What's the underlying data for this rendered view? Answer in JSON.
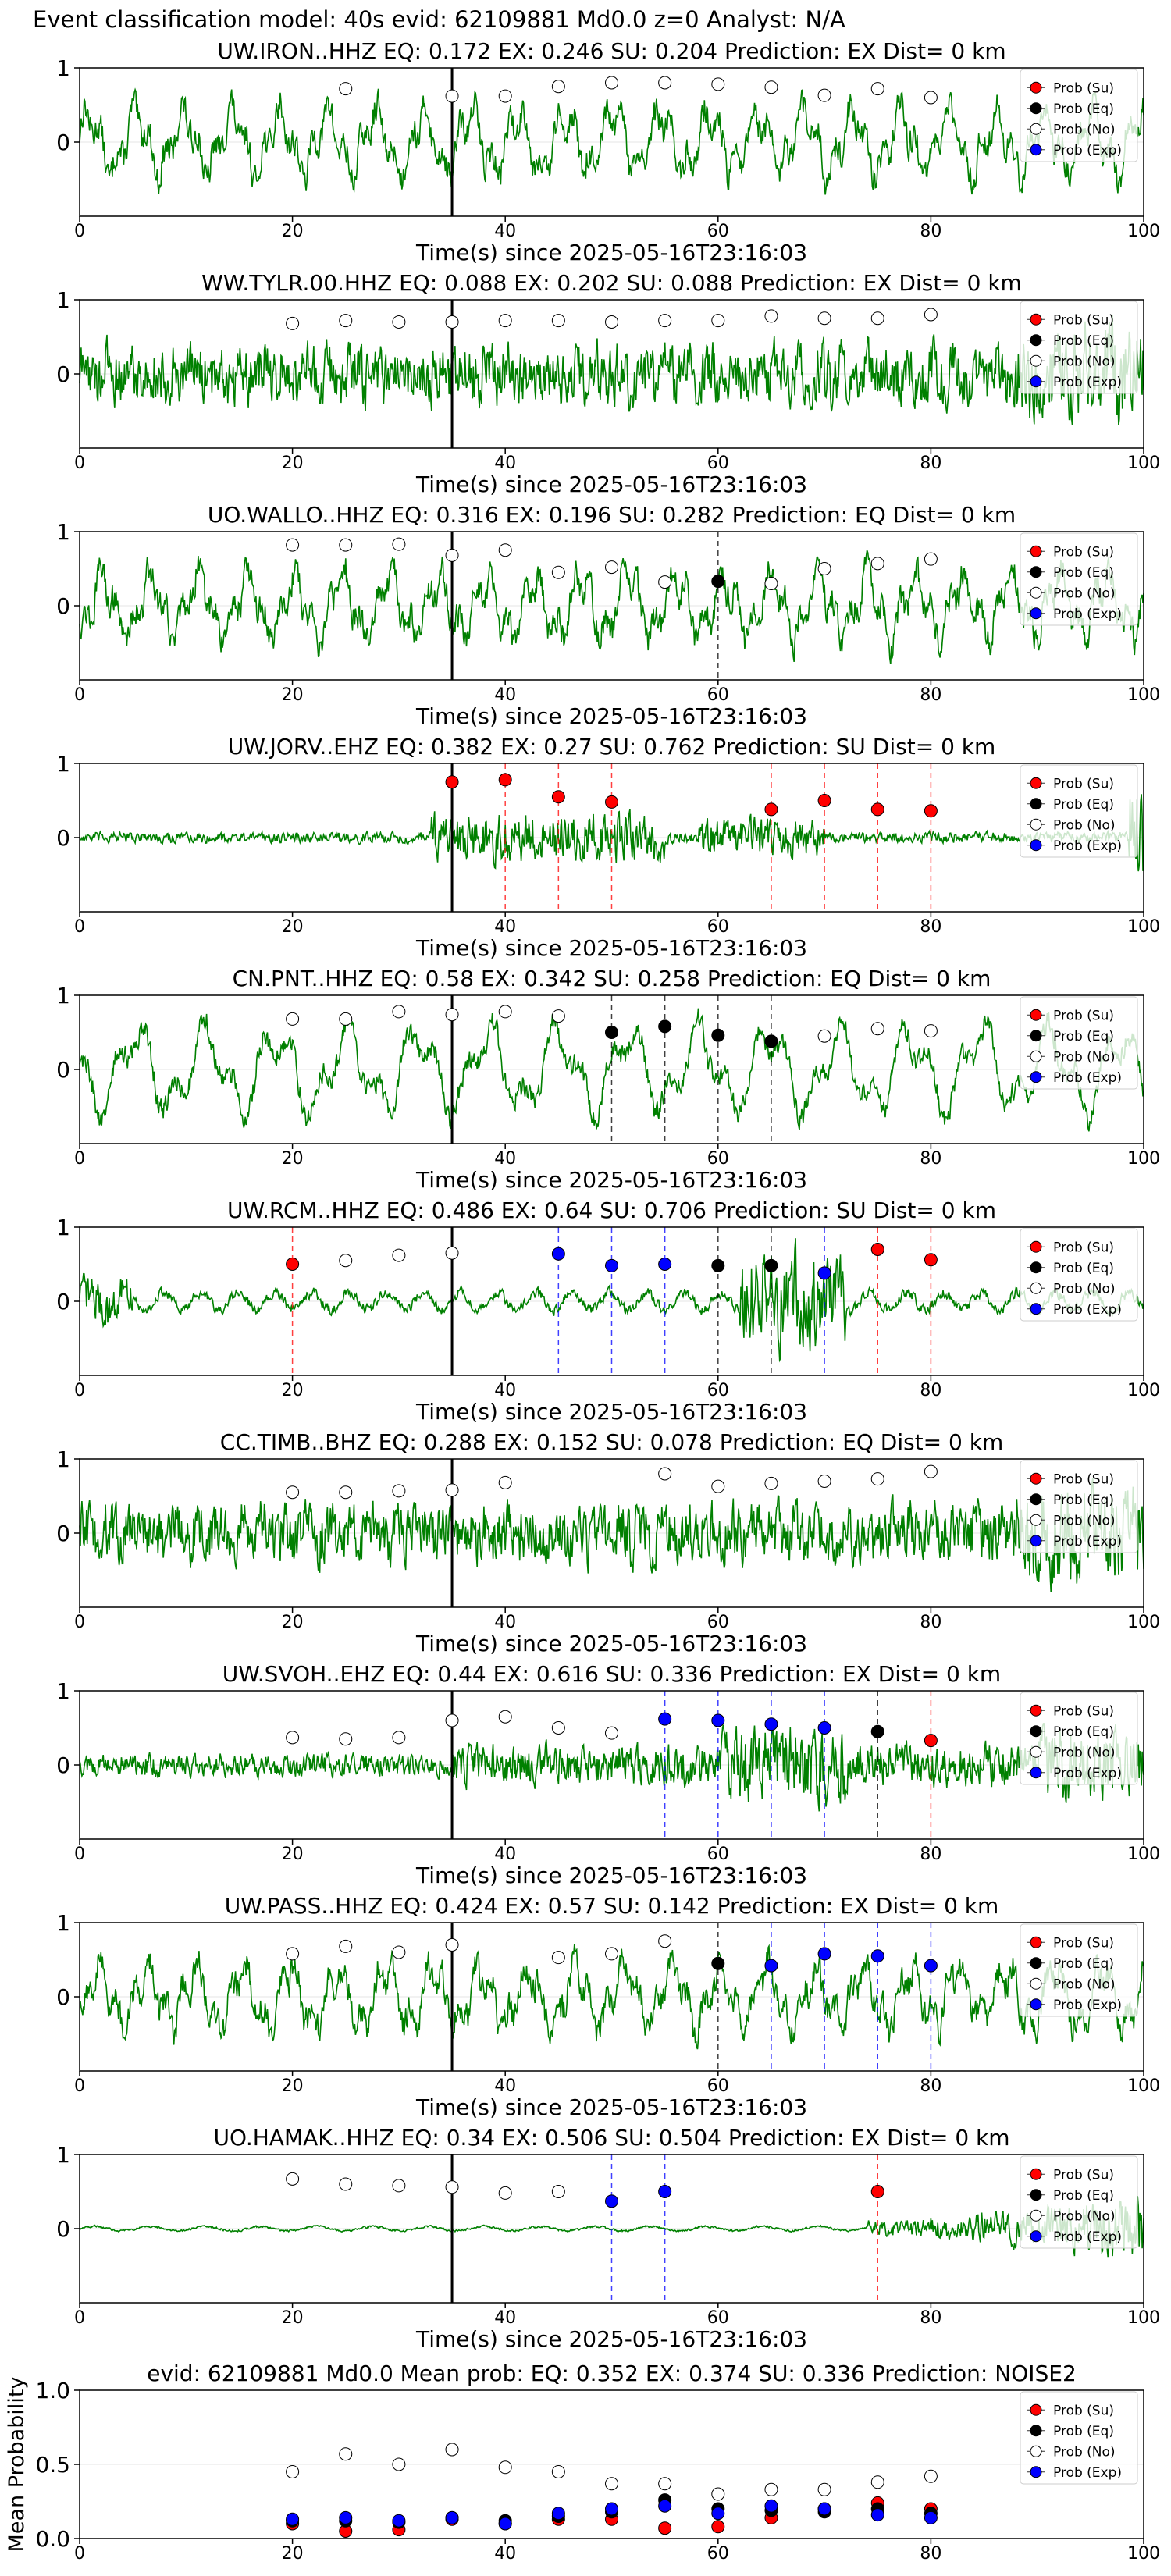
{
  "figure": {
    "title": "Event classification model: 40s evid: 62109881 Md0.0 z=0 Analyst: N/A",
    "xlabel": "Time(s) since 2025-05-16T23:16:03",
    "legend": [
      "Prob (Su)",
      "Prob (Eq)",
      "Prob (No)",
      "Prob (Exp)"
    ],
    "colors": {
      "su": "#ff0000",
      "eq": "#000000",
      "no": "#ffffff",
      "exp": "#0000ff",
      "trace": "#008000",
      "pick": "#000000"
    },
    "pick_time": 35
  },
  "chart_data": [
    {
      "type": "line",
      "station": "UW.IRON..HHZ",
      "title": "UW.IRON..HHZ   EQ: 0.172  EX: 0.246  SU: 0.204   Prediction: EX    Dist= 0 km",
      "xlim": [
        0,
        100
      ],
      "ylim": [
        -1,
        1
      ],
      "xticks": [
        0,
        20,
        40,
        60,
        80,
        100
      ],
      "yticks": [
        1,
        0
      ],
      "trace_style": "noisy",
      "windows": [
        {
          "x": 25,
          "cls": "no",
          "y": 0.72
        },
        {
          "x": 35,
          "cls": "no",
          "y": 0.62
        },
        {
          "x": 40,
          "cls": "no",
          "y": 0.62
        },
        {
          "x": 45,
          "cls": "no",
          "y": 0.75
        },
        {
          "x": 50,
          "cls": "no",
          "y": 0.8
        },
        {
          "x": 55,
          "cls": "no",
          "y": 0.8
        },
        {
          "x": 60,
          "cls": "no",
          "y": 0.78
        },
        {
          "x": 65,
          "cls": "no",
          "y": 0.74
        },
        {
          "x": 70,
          "cls": "no",
          "y": 0.63
        },
        {
          "x": 75,
          "cls": "no",
          "y": 0.72
        },
        {
          "x": 80,
          "cls": "no",
          "y": 0.6
        }
      ]
    },
    {
      "type": "line",
      "station": "WW.TYLR.00.HHZ",
      "title": "WW.TYLR.00.HHZ   EQ: 0.088  EX: 0.202  SU: 0.088   Prediction: EX    Dist= 0 km",
      "xlim": [
        0,
        100
      ],
      "ylim": [
        -1,
        1
      ],
      "xticks": [
        0,
        20,
        40,
        60,
        80,
        100
      ],
      "yticks": [
        1,
        0
      ],
      "trace_style": "dense",
      "windows": [
        {
          "x": 20,
          "cls": "no",
          "y": 0.68
        },
        {
          "x": 25,
          "cls": "no",
          "y": 0.72
        },
        {
          "x": 30,
          "cls": "no",
          "y": 0.7
        },
        {
          "x": 35,
          "cls": "no",
          "y": 0.7
        },
        {
          "x": 40,
          "cls": "no",
          "y": 0.72
        },
        {
          "x": 45,
          "cls": "no",
          "y": 0.72
        },
        {
          "x": 50,
          "cls": "no",
          "y": 0.7
        },
        {
          "x": 55,
          "cls": "no",
          "y": 0.72
        },
        {
          "x": 60,
          "cls": "no",
          "y": 0.72
        },
        {
          "x": 65,
          "cls": "no",
          "y": 0.78
        },
        {
          "x": 70,
          "cls": "no",
          "y": 0.75
        },
        {
          "x": 75,
          "cls": "no",
          "y": 0.75
        },
        {
          "x": 80,
          "cls": "no",
          "y": 0.8
        }
      ]
    },
    {
      "type": "line",
      "station": "UO.WALLO..HHZ",
      "title": "UO.WALLO..HHZ   EQ: 0.316  EX: 0.196  SU: 0.282   Prediction: EQ    Dist= 0 km",
      "xlim": [
        0,
        100
      ],
      "ylim": [
        -1,
        1
      ],
      "xticks": [
        0,
        20,
        40,
        60,
        80,
        100
      ],
      "yticks": [
        1,
        0
      ],
      "trace_style": "noisy",
      "windows": [
        {
          "x": 20,
          "cls": "no",
          "y": 0.82
        },
        {
          "x": 25,
          "cls": "no",
          "y": 0.82
        },
        {
          "x": 30,
          "cls": "no",
          "y": 0.83
        },
        {
          "x": 35,
          "cls": "no",
          "y": 0.68
        },
        {
          "x": 40,
          "cls": "no",
          "y": 0.75
        },
        {
          "x": 45,
          "cls": "no",
          "y": 0.45
        },
        {
          "x": 50,
          "cls": "no",
          "y": 0.52
        },
        {
          "x": 55,
          "cls": "no",
          "y": 0.32
        },
        {
          "x": 60,
          "cls": "eq",
          "y": 0.33
        },
        {
          "x": 65,
          "cls": "no",
          "y": 0.3
        },
        {
          "x": 70,
          "cls": "no",
          "y": 0.5
        },
        {
          "x": 75,
          "cls": "no",
          "y": 0.57
        },
        {
          "x": 80,
          "cls": "no",
          "y": 0.63
        }
      ]
    },
    {
      "type": "line",
      "station": "UW.JORV..EHZ",
      "title": "UW.JORV..EHZ   EQ: 0.382  EX: 0.27  SU: 0.762   Prediction: SU    Dist= 0 km",
      "xlim": [
        0,
        100
      ],
      "ylim": [
        -1,
        1
      ],
      "xticks": [
        0,
        20,
        40,
        60,
        80,
        100
      ],
      "yticks": [
        1,
        0
      ],
      "trace_style": "quiet",
      "windows": [
        {
          "x": 35,
          "cls": "su",
          "y": 0.75
        },
        {
          "x": 40,
          "cls": "su",
          "y": 0.78
        },
        {
          "x": 45,
          "cls": "su",
          "y": 0.55
        },
        {
          "x": 50,
          "cls": "su",
          "y": 0.48
        },
        {
          "x": 65,
          "cls": "su",
          "y": 0.38
        },
        {
          "x": 70,
          "cls": "su",
          "y": 0.5
        },
        {
          "x": 75,
          "cls": "su",
          "y": 0.38
        },
        {
          "x": 80,
          "cls": "su",
          "y": 0.36
        }
      ]
    },
    {
      "type": "line",
      "station": "CN.PNT..HHZ",
      "title": "CN.PNT..HHZ   EQ: 0.58  EX: 0.342  SU: 0.258   Prediction: EQ    Dist= 0 km",
      "xlim": [
        0,
        100
      ],
      "ylim": [
        -1,
        1
      ],
      "xticks": [
        0,
        20,
        40,
        60,
        80,
        100
      ],
      "yticks": [
        1,
        0
      ],
      "trace_style": "waves",
      "windows": [
        {
          "x": 20,
          "cls": "no",
          "y": 0.68
        },
        {
          "x": 25,
          "cls": "no",
          "y": 0.68
        },
        {
          "x": 30,
          "cls": "no",
          "y": 0.78
        },
        {
          "x": 35,
          "cls": "no",
          "y": 0.74
        },
        {
          "x": 40,
          "cls": "no",
          "y": 0.78
        },
        {
          "x": 45,
          "cls": "no",
          "y": 0.72
        },
        {
          "x": 50,
          "cls": "eq",
          "y": 0.5
        },
        {
          "x": 55,
          "cls": "eq",
          "y": 0.58
        },
        {
          "x": 60,
          "cls": "eq",
          "y": 0.46
        },
        {
          "x": 65,
          "cls": "eq",
          "y": 0.38
        },
        {
          "x": 70,
          "cls": "no",
          "y": 0.45
        },
        {
          "x": 75,
          "cls": "no",
          "y": 0.55
        },
        {
          "x": 80,
          "cls": "no",
          "y": 0.52
        }
      ]
    },
    {
      "type": "line",
      "station": "UW.RCM..HHZ",
      "title": "UW.RCM..HHZ   EQ: 0.486  EX: 0.64  SU: 0.706   Prediction: SU    Dist= 0 km",
      "xlim": [
        0,
        100
      ],
      "ylim": [
        -1,
        1
      ],
      "xticks": [
        0,
        20,
        40,
        60,
        80,
        100
      ],
      "yticks": [
        1,
        0
      ],
      "trace_style": "burst",
      "windows": [
        {
          "x": 20,
          "cls": "su",
          "y": 0.5
        },
        {
          "x": 25,
          "cls": "no",
          "y": 0.55
        },
        {
          "x": 30,
          "cls": "no",
          "y": 0.62
        },
        {
          "x": 35,
          "cls": "no",
          "y": 0.65
        },
        {
          "x": 45,
          "cls": "exp",
          "y": 0.64
        },
        {
          "x": 50,
          "cls": "exp",
          "y": 0.48
        },
        {
          "x": 55,
          "cls": "exp",
          "y": 0.5
        },
        {
          "x": 60,
          "cls": "eq",
          "y": 0.48
        },
        {
          "x": 65,
          "cls": "eq",
          "y": 0.48
        },
        {
          "x": 70,
          "cls": "exp",
          "y": 0.38
        },
        {
          "x": 75,
          "cls": "su",
          "y": 0.7
        },
        {
          "x": 80,
          "cls": "su",
          "y": 0.56
        }
      ]
    },
    {
      "type": "line",
      "station": "CC.TIMB..BHZ",
      "title": "CC.TIMB..BHZ   EQ: 0.288  EX: 0.152  SU: 0.078   Prediction: EQ    Dist= 0 km",
      "xlim": [
        0,
        100
      ],
      "ylim": [
        -1,
        1
      ],
      "xticks": [
        0,
        20,
        40,
        60,
        80,
        100
      ],
      "yticks": [
        1,
        0
      ],
      "trace_style": "dense",
      "windows": [
        {
          "x": 20,
          "cls": "no",
          "y": 0.55
        },
        {
          "x": 25,
          "cls": "no",
          "y": 0.55
        },
        {
          "x": 30,
          "cls": "no",
          "y": 0.57
        },
        {
          "x": 35,
          "cls": "no",
          "y": 0.58
        },
        {
          "x": 40,
          "cls": "no",
          "y": 0.68
        },
        {
          "x": 55,
          "cls": "no",
          "y": 0.8
        },
        {
          "x": 60,
          "cls": "no",
          "y": 0.63
        },
        {
          "x": 65,
          "cls": "no",
          "y": 0.67
        },
        {
          "x": 70,
          "cls": "no",
          "y": 0.7
        },
        {
          "x": 75,
          "cls": "no",
          "y": 0.73
        },
        {
          "x": 80,
          "cls": "no",
          "y": 0.83
        }
      ]
    },
    {
      "type": "line",
      "station": "UW.SVOH..EHZ",
      "title": "UW.SVOH..EHZ   EQ: 0.44  EX: 0.616  SU: 0.336   Prediction: EX    Dist= 0 km",
      "xlim": [
        0,
        100
      ],
      "ylim": [
        -1,
        1
      ],
      "xticks": [
        0,
        20,
        40,
        60,
        80,
        100
      ],
      "yticks": [
        1,
        0
      ],
      "trace_style": "medium",
      "windows": [
        {
          "x": 20,
          "cls": "no",
          "y": 0.37
        },
        {
          "x": 25,
          "cls": "no",
          "y": 0.35
        },
        {
          "x": 30,
          "cls": "no",
          "y": 0.37
        },
        {
          "x": 35,
          "cls": "no",
          "y": 0.6
        },
        {
          "x": 40,
          "cls": "no",
          "y": 0.65
        },
        {
          "x": 45,
          "cls": "no",
          "y": 0.5
        },
        {
          "x": 50,
          "cls": "no",
          "y": 0.43
        },
        {
          "x": 55,
          "cls": "exp",
          "y": 0.62
        },
        {
          "x": 60,
          "cls": "exp",
          "y": 0.6
        },
        {
          "x": 65,
          "cls": "exp",
          "y": 0.55
        },
        {
          "x": 70,
          "cls": "exp",
          "y": 0.5
        },
        {
          "x": 75,
          "cls": "eq",
          "y": 0.45
        },
        {
          "x": 80,
          "cls": "su",
          "y": 0.33
        }
      ]
    },
    {
      "type": "line",
      "station": "UW.PASS..HHZ",
      "title": "UW.PASS..HHZ   EQ: 0.424  EX: 0.57  SU: 0.142   Prediction: EX    Dist= 0 km",
      "xlim": [
        0,
        100
      ],
      "ylim": [
        -1,
        1
      ],
      "xticks": [
        0,
        20,
        40,
        60,
        80,
        100
      ],
      "yticks": [
        1,
        0
      ],
      "trace_style": "noisy",
      "windows": [
        {
          "x": 20,
          "cls": "no",
          "y": 0.58
        },
        {
          "x": 25,
          "cls": "no",
          "y": 0.68
        },
        {
          "x": 30,
          "cls": "no",
          "y": 0.6
        },
        {
          "x": 35,
          "cls": "no",
          "y": 0.7
        },
        {
          "x": 45,
          "cls": "no",
          "y": 0.53
        },
        {
          "x": 50,
          "cls": "no",
          "y": 0.58
        },
        {
          "x": 55,
          "cls": "no",
          "y": 0.75
        },
        {
          "x": 60,
          "cls": "eq",
          "y": 0.45
        },
        {
          "x": 65,
          "cls": "exp",
          "y": 0.42
        },
        {
          "x": 70,
          "cls": "exp",
          "y": 0.58
        },
        {
          "x": 75,
          "cls": "exp",
          "y": 0.55
        },
        {
          "x": 80,
          "cls": "exp",
          "y": 0.42
        }
      ]
    },
    {
      "type": "line",
      "station": "UO.HAMAK..HHZ",
      "title": "UO.HAMAK..HHZ   EQ: 0.34  EX: 0.506  SU: 0.504   Prediction: EX    Dist= 0 km",
      "xlim": [
        0,
        100
      ],
      "ylim": [
        -1,
        1
      ],
      "xticks": [
        0,
        20,
        40,
        60,
        80,
        100
      ],
      "yticks": [
        1,
        0
      ],
      "trace_style": "flat",
      "windows": [
        {
          "x": 20,
          "cls": "no",
          "y": 0.67
        },
        {
          "x": 25,
          "cls": "no",
          "y": 0.6
        },
        {
          "x": 30,
          "cls": "no",
          "y": 0.58
        },
        {
          "x": 35,
          "cls": "no",
          "y": 0.56
        },
        {
          "x": 40,
          "cls": "no",
          "y": 0.48
        },
        {
          "x": 45,
          "cls": "no",
          "y": 0.5
        },
        {
          "x": 50,
          "cls": "exp",
          "y": 0.37
        },
        {
          "x": 55,
          "cls": "exp",
          "y": 0.5
        },
        {
          "x": 75,
          "cls": "su",
          "y": 0.5
        }
      ]
    },
    {
      "type": "scatter",
      "title": "evid: 62109881  Md0.0   Mean prob:   EQ: 0.352  EX: 0.374  SU: 0.336   Prediction: NOISE2",
      "ylabel": "Mean Probability",
      "xlim": [
        0,
        100
      ],
      "ylim": [
        0,
        1
      ],
      "xticks": [
        0,
        20,
        40,
        60,
        80,
        100
      ],
      "yticks": [
        1.0,
        0.5,
        0.0
      ],
      "x": [
        20,
        25,
        30,
        35,
        40,
        45,
        50,
        55,
        60,
        65,
        70,
        75,
        80
      ],
      "series": [
        {
          "name": "Prob (Su)",
          "cls": "su",
          "values": [
            0.1,
            0.05,
            0.06,
            0.13,
            0.1,
            0.13,
            0.13,
            0.07,
            0.08,
            0.14,
            0.2,
            0.24,
            0.2
          ]
        },
        {
          "name": "Prob (Eq)",
          "cls": "eq",
          "values": [
            0.12,
            0.12,
            0.11,
            0.14,
            0.12,
            0.15,
            0.18,
            0.26,
            0.2,
            0.19,
            0.18,
            0.2,
            0.17
          ]
        },
        {
          "name": "Prob (No)",
          "cls": "no",
          "values": [
            0.45,
            0.57,
            0.5,
            0.6,
            0.48,
            0.45,
            0.37,
            0.37,
            0.3,
            0.33,
            0.33,
            0.38,
            0.42
          ]
        },
        {
          "name": "Prob (Exp)",
          "cls": "exp",
          "values": [
            0.13,
            0.14,
            0.12,
            0.14,
            0.1,
            0.17,
            0.2,
            0.22,
            0.17,
            0.22,
            0.2,
            0.16,
            0.14
          ]
        }
      ]
    }
  ]
}
